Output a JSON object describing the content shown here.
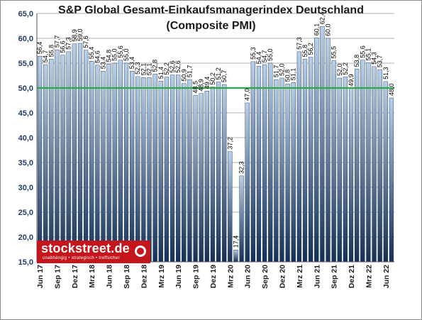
{
  "chart_data": {
    "type": "bar",
    "title": "S&P Global Gesamt-Einkaufsmanagerindex Deutschland",
    "subtitle": "(Composite PMI)",
    "ylim": [
      15,
      65
    ],
    "yticks": [
      "15,0",
      "20,0",
      "25,0",
      "30,0",
      "35,0",
      "40,0",
      "45,0",
      "50,0",
      "55,0",
      "60,0",
      "65,0"
    ],
    "reference_line": 50.0,
    "grid": true,
    "categories": [
      "Jun 17",
      "Jul 17",
      "Aug 17",
      "Sep 17",
      "Okt 17",
      "Nov 17",
      "Dez 17",
      "Jan 18",
      "Feb 18",
      "Mrz 18",
      "Apr 18",
      "Mai 18",
      "Jun 18",
      "Jul 18",
      "Aug 18",
      "Sep 18",
      "Okt 18",
      "Nov 18",
      "Dez 18",
      "Jan 19",
      "Feb 19",
      "Mrz 19",
      "Apr 19",
      "Mai 19",
      "Jun 19",
      "Jul 19",
      "Aug 19",
      "Sep 19",
      "Okt 19",
      "Nov 19",
      "Dez 19",
      "Jan 20",
      "Feb 20",
      "Mrz 20",
      "Apr 20",
      "Mai 20",
      "Jun 20",
      "Jul 20",
      "Aug 20",
      "Sep 20",
      "Okt 20",
      "Nov 20",
      "Dez 20",
      "Jan 21",
      "Feb 21",
      "Mrz 21",
      "Apr 21",
      "Mai 21",
      "Jun 21",
      "Jul 21",
      "Aug 21",
      "Sep 21",
      "Okt 21",
      "Nov 21",
      "Dez 21",
      "Jan 22",
      "Feb 22",
      "Mrz 22",
      "Apr 22",
      "Mai 22",
      "Jun 22",
      "Jul 22"
    ],
    "x_tick_labels": [
      "Jun 17",
      "Sep 17",
      "Dez 17",
      "Mrz 18",
      "Jun 18",
      "Sep 18",
      "Dez 18",
      "Mrz 19",
      "Jun 19",
      "Sep 19",
      "Dez 19",
      "Mrz 20",
      "Jun 20",
      "Sep 20",
      "Dez 20",
      "Mrz 21",
      "Jun 21",
      "Sep 21",
      "Dez 21",
      "Mrz 22",
      "Jun 22"
    ],
    "values": [
      56.4,
      54.7,
      55.8,
      57.7,
      56.6,
      57.3,
      58.9,
      59.0,
      57.6,
      55.4,
      54.6,
      53.4,
      54.8,
      55.0,
      55.6,
      55.0,
      53.4,
      52.3,
      52.1,
      52.1,
      52.8,
      51.4,
      52.2,
      52.6,
      52.6,
      50.9,
      51.7,
      48.5,
      48.9,
      49.4,
      50.2,
      51.2,
      50.7,
      37.2,
      17.4,
      32.3,
      47.0,
      55.3,
      54.4,
      54.7,
      55.0,
      51.7,
      52.0,
      50.8,
      51.1,
      57.3,
      55.8,
      56.2,
      60.1,
      62.4,
      60.0,
      55.5,
      52.0,
      52.2,
      49.9,
      53.8,
      55.6,
      55.1,
      54.3,
      53.7,
      51.3,
      48.0
    ],
    "value_labels": [
      "56,4",
      "54,7",
      "55,8",
      "57,7",
      "56,6",
      "57,3",
      "58,9",
      "59,0",
      "57,6",
      "55,4",
      "54,6",
      "53,4",
      "54,8",
      "55,0",
      "55,6",
      "55,0",
      "53,4",
      "52,3",
      "52,1",
      "52,1",
      "52,8",
      "51,4",
      "52,2",
      "52,6",
      "52,6",
      "50,9",
      "51,7",
      "48,5",
      "48,9",
      "49,4",
      "50,2",
      "51,2",
      "50,7",
      "37,2",
      "17,4",
      "32,3",
      "47,0",
      "55,3",
      "54,4",
      "54,7",
      "55,0",
      "51,7",
      "52,0",
      "50,8",
      "51,1",
      "57,3",
      "55,8",
      "56,2",
      "60,1",
      "62,4",
      "60,0",
      "55,5",
      "52,0",
      "52,2",
      "49,9",
      "53,8",
      "55,6",
      "55,1",
      "54,3",
      "53,7",
      "51,3",
      "48,0"
    ],
    "colors": {
      "bar_top": "#b8d0ea",
      "bar_bottom": "#14305a",
      "reference_line": "#2aa84a",
      "axis_text": "#1f3b66",
      "grid": "#9a9a9a"
    }
  },
  "logo": {
    "main": "stockstreet.de",
    "sub": "unabhängig • strategisch • treffsicher"
  }
}
